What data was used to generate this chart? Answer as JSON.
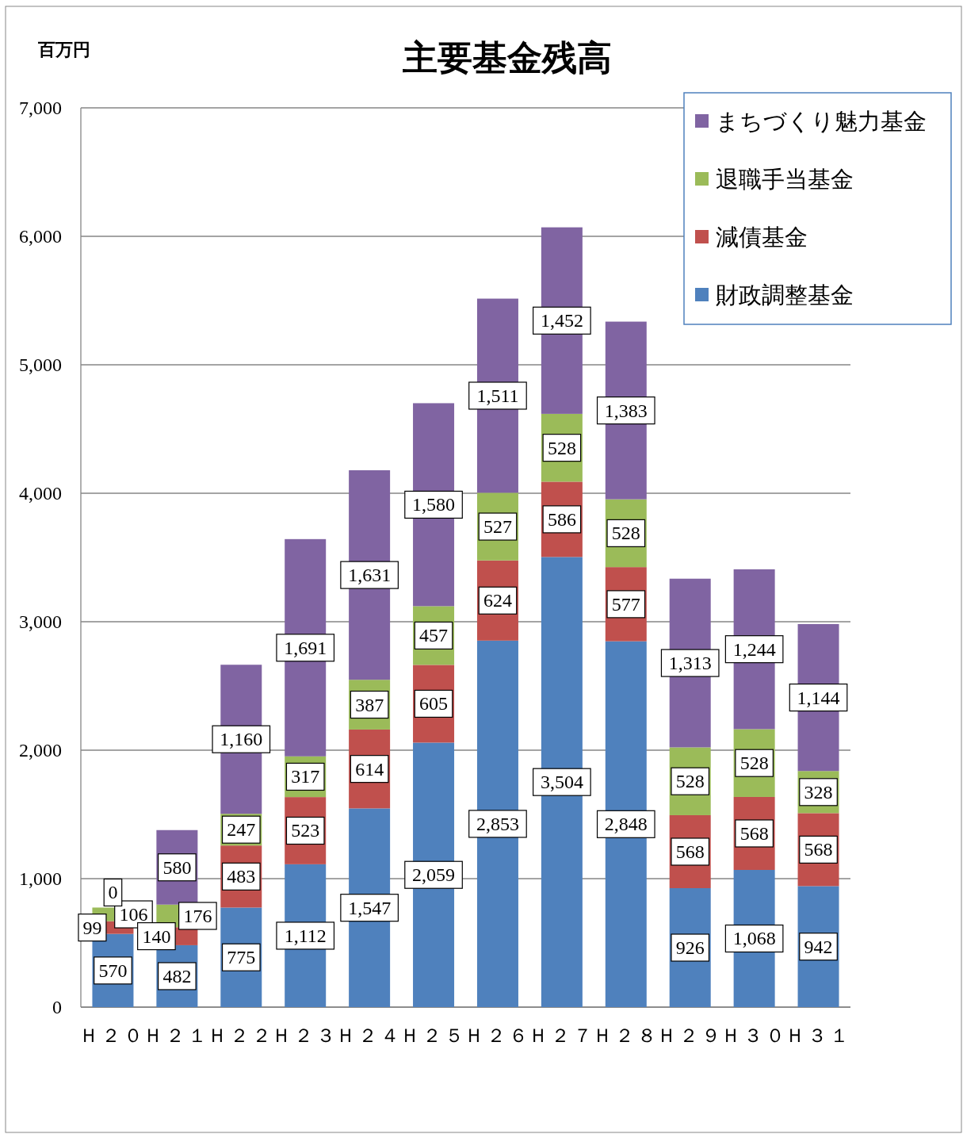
{
  "chart_data": {
    "type": "bar",
    "stacked": true,
    "title": "主要基金残高",
    "ylabel": "百万円",
    "categories": [
      "Ｈ２０",
      "Ｈ２１",
      "Ｈ２２",
      "Ｈ２３",
      "Ｈ２４",
      "Ｈ２５",
      "Ｈ２６",
      "Ｈ２７",
      "Ｈ２８",
      "Ｈ２９",
      "Ｈ３０",
      "Ｈ３１"
    ],
    "series": [
      {
        "name": "財政調整基金",
        "color": "#4f81bd",
        "values": [
          570,
          482,
          775,
          1112,
          1547,
          2059,
          2853,
          3504,
          2848,
          926,
          1068,
          942
        ],
        "value_labels": [
          "570",
          "482",
          "775",
          "1,112",
          "1,547",
          "2,059",
          "2,853",
          "3,504",
          "2,848",
          "926",
          "1,068",
          "942"
        ]
      },
      {
        "name": "減債基金",
        "color": "#c0504d",
        "values": [
          99,
          140,
          483,
          523,
          614,
          605,
          624,
          586,
          577,
          568,
          568,
          568
        ],
        "value_labels": [
          "99",
          "140",
          "483",
          "523",
          "614",
          "605",
          "624",
          "586",
          "577",
          "568",
          "568",
          "568"
        ]
      },
      {
        "name": "退職手当基金",
        "color": "#9bbb59",
        "values": [
          106,
          176,
          247,
          317,
          387,
          457,
          527,
          528,
          528,
          528,
          528,
          328
        ],
        "value_labels": [
          "106",
          "176",
          "247",
          "317",
          "387",
          "457",
          "527",
          "528",
          "528",
          "528",
          "528",
          "328"
        ]
      },
      {
        "name": "まちづくり魅力基金",
        "color": "#8064a2",
        "values": [
          0,
          580,
          1160,
          1691,
          1631,
          1580,
          1511,
          1452,
          1383,
          1313,
          1244,
          1144
        ],
        "value_labels": [
          "0",
          "580",
          "1,160",
          "1,691",
          "1,631",
          "1,580",
          "1,511",
          "1,452",
          "1,383",
          "1,313",
          "1,244",
          "1,144"
        ]
      }
    ],
    "ylim": [
      0,
      7000
    ],
    "yticks": [
      0,
      {
        "value": 1000,
        "label": "1,000"
      },
      {
        "value": 2000,
        "label": "2,000"
      },
      {
        "value": 3000,
        "label": "3,000"
      },
      {
        "value": 4000,
        "label": "4,000"
      },
      {
        "value": 5000,
        "label": "5,000"
      },
      {
        "value": 6000,
        "label": "6,000"
      },
      {
        "value": 7000,
        "label": "7,000"
      }
    ],
    "grid": "y",
    "legend": "top right"
  }
}
